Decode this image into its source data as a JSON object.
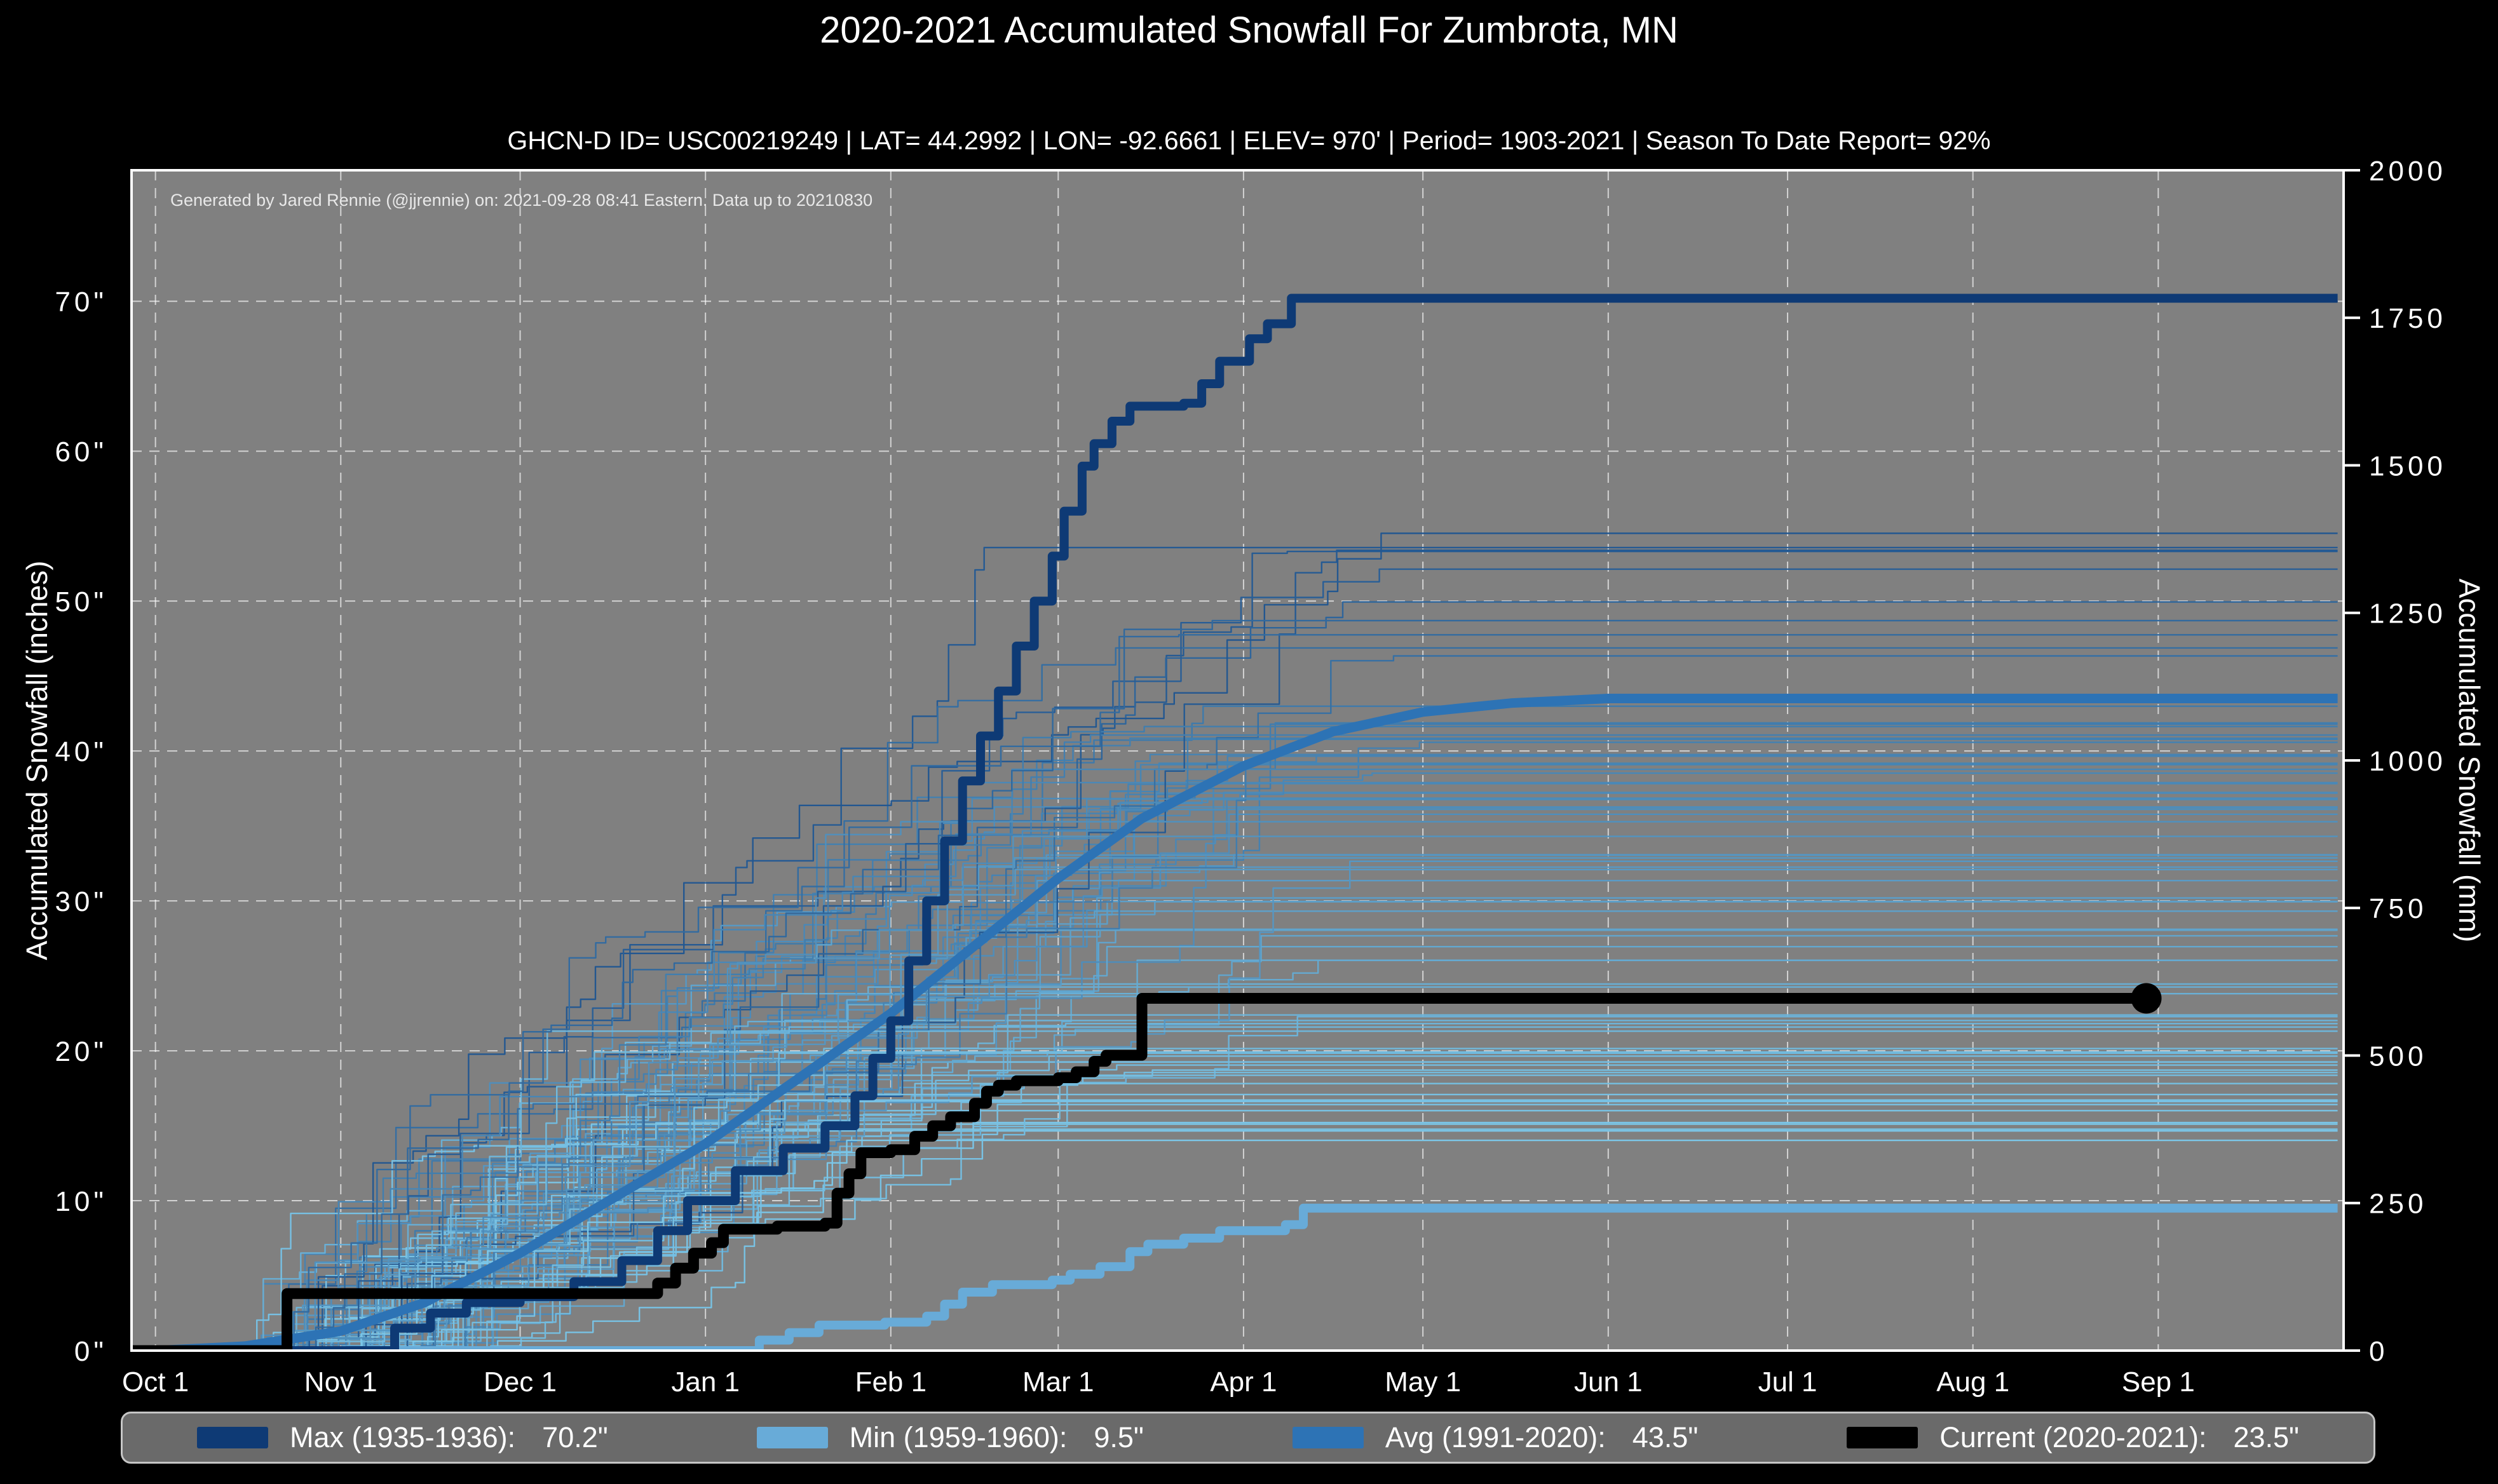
{
  "title": "2020-2021 Accumulated Snowfall For Zumbrota, MN",
  "subtitle": "GHCN-D ID= USC00219249 | LAT= 44.2992 | LON= -92.6661 | ELEV= 970' | Period= 1903-2021 | Season To Date Report= 92%",
  "attribution": "Generated by Jared Rennie (@jjrennie) on: 2021-09-28 08:41 Eastern. Data up to 20210830",
  "colors": {
    "page_background": "#000000",
    "plot_background": "#808080",
    "gridline": "rgba(255,255,255,0.65)",
    "spine": "#ffffff",
    "text": "#ffffff",
    "max_line": "#0e3a75",
    "min_line": "#68abd8",
    "avg_line": "#2d73b5",
    "current_line": "#000000"
  },
  "axes": {
    "x": {
      "tick_labels": [
        "Oct 1",
        "Nov 1",
        "Dec 1",
        "Jan 1",
        "Feb 1",
        "Mar 1",
        "Apr 1",
        "May 1",
        "Jun 1",
        "Jul 1",
        "Aug 1",
        "Sep 1"
      ],
      "tick_days": [
        0,
        31,
        61,
        92,
        123,
        151,
        182,
        212,
        243,
        273,
        304,
        335
      ]
    },
    "y_left": {
      "label": "Accumulated Snowfall (inches)",
      "tick_values": [
        0,
        10,
        20,
        30,
        40,
        50,
        60,
        70
      ],
      "tick_labels": [
        "0\"",
        "10\"",
        "20\"",
        "30\"",
        "40\"",
        "50\"",
        "60\"",
        "70\""
      ]
    },
    "y_right": {
      "label": "Accumulated Snowfall (mm)",
      "tick_values_mm": [
        0,
        250,
        500,
        750,
        1000,
        1250,
        1500,
        1750,
        2000
      ],
      "tick_labels": [
        "0",
        "250",
        "500",
        "750",
        "1000",
        "1250",
        "1500",
        "1750",
        "2000"
      ]
    }
  },
  "legend": {
    "items": [
      {
        "id": "max",
        "label": "Max (1935-1936):",
        "value": "70.2\"",
        "color": "#0e3a75"
      },
      {
        "id": "min",
        "label": "Min (1959-1960):",
        "value": "9.5\"",
        "color": "#68abd8"
      },
      {
        "id": "avg",
        "label": "Avg (1991-2020):",
        "value": "43.5\"",
        "color": "#2d73b5"
      },
      {
        "id": "current",
        "label": "Current (2020-2021):",
        "value": "23.5\"",
        "color": "#000000"
      }
    ]
  },
  "chart_data": {
    "type": "line",
    "title": "2020-2021 Accumulated Snowfall For Zumbrota, MN",
    "x_unit": "days since Oct 1",
    "x_range_days": [
      -4,
      366
    ],
    "ylim_inches": [
      0,
      78.74
    ],
    "ylim_mm": [
      0,
      2000
    ],
    "mm_per_inch": 25.4,
    "grid": true,
    "legend_position": "bottom",
    "series": [
      {
        "name": "Max (1935-1936)",
        "total_inches": 70.2,
        "color": "#0e3a75",
        "width": 14,
        "style": "step",
        "points": [
          [
            -4,
            0
          ],
          [
            38,
            0
          ],
          [
            40,
            1.5
          ],
          [
            46,
            2.5
          ],
          [
            52,
            3.2
          ],
          [
            61,
            3.6
          ],
          [
            70,
            4.6
          ],
          [
            78,
            6
          ],
          [
            84,
            8
          ],
          [
            89,
            10
          ],
          [
            97,
            12
          ],
          [
            105,
            13.5
          ],
          [
            112,
            15
          ],
          [
            117,
            17
          ],
          [
            120,
            19.5
          ],
          [
            123,
            22
          ],
          [
            126,
            26
          ],
          [
            129,
            30
          ],
          [
            132,
            34
          ],
          [
            135,
            38
          ],
          [
            138,
            41
          ],
          [
            141,
            44
          ],
          [
            144,
            47
          ],
          [
            147,
            50
          ],
          [
            150,
            53
          ],
          [
            152,
            56
          ],
          [
            155,
            59
          ],
          [
            157,
            60.5
          ],
          [
            160,
            62
          ],
          [
            163,
            63
          ],
          [
            172,
            63.2
          ],
          [
            175,
            64.5
          ],
          [
            178,
            66
          ],
          [
            183,
            67.5
          ],
          [
            186,
            68.5
          ],
          [
            190,
            70.2
          ],
          [
            365,
            70.2
          ]
        ]
      },
      {
        "name": "Min (1959-1960)",
        "total_inches": 9.5,
        "color": "#68abd8",
        "width": 14,
        "style": "step",
        "points": [
          [
            -4,
            0
          ],
          [
            100,
            0
          ],
          [
            101,
            0.7
          ],
          [
            106,
            1.2
          ],
          [
            111,
            1.7
          ],
          [
            122,
            1.9
          ],
          [
            129,
            2.3
          ],
          [
            132,
            3.1
          ],
          [
            135,
            3.9
          ],
          [
            140,
            4.4
          ],
          [
            150,
            4.7
          ],
          [
            153,
            5.1
          ],
          [
            158,
            5.6
          ],
          [
            163,
            6.6
          ],
          [
            166,
            7.1
          ],
          [
            172,
            7.5
          ],
          [
            178,
            8.0
          ],
          [
            189,
            8.4
          ],
          [
            192,
            9.5
          ],
          [
            365,
            9.5
          ]
        ]
      },
      {
        "name": "Avg (1991-2020)",
        "total_inches": 43.5,
        "color": "#2d73b5",
        "width": 15,
        "style": "smooth",
        "points": [
          [
            -4,
            0
          ],
          [
            0,
            0
          ],
          [
            15,
            0.3
          ],
          [
            31,
            1.3
          ],
          [
            45,
            3.2
          ],
          [
            61,
            6.5
          ],
          [
            75,
            9.8
          ],
          [
            92,
            13.8
          ],
          [
            107,
            18
          ],
          [
            123,
            22.5
          ],
          [
            137,
            27
          ],
          [
            151,
            31.5
          ],
          [
            165,
            35.5
          ],
          [
            182,
            39
          ],
          [
            197,
            41.3
          ],
          [
            212,
            42.6
          ],
          [
            227,
            43.2
          ],
          [
            243,
            43.5
          ],
          [
            365,
            43.5
          ]
        ]
      },
      {
        "name": "Current (2020-2021)",
        "total_inches": 23.5,
        "color": "#000000",
        "width": 17,
        "style": "step",
        "end_marker": true,
        "points": [
          [
            -4,
            0
          ],
          [
            21,
            0
          ],
          [
            22,
            3.8
          ],
          [
            83,
            3.8
          ],
          [
            84,
            4.5
          ],
          [
            87,
            5.5
          ],
          [
            90,
            6.5
          ],
          [
            93,
            7.2
          ],
          [
            95,
            8.1
          ],
          [
            104,
            8.3
          ],
          [
            112,
            8.5
          ],
          [
            114,
            10.5
          ],
          [
            116,
            11.8
          ],
          [
            118,
            13.2
          ],
          [
            123,
            13.4
          ],
          [
            127,
            14.3
          ],
          [
            130,
            15
          ],
          [
            133,
            15.6
          ],
          [
            137,
            16.5
          ],
          [
            139,
            17.3
          ],
          [
            141,
            17.7
          ],
          [
            144,
            18
          ],
          [
            151,
            18.2
          ],
          [
            154,
            18.6
          ],
          [
            157,
            19.3
          ],
          [
            159,
            19.7
          ],
          [
            164,
            19.7
          ],
          [
            165,
            23.5
          ],
          [
            333,
            23.5
          ]
        ]
      }
    ],
    "background_seasons": {
      "note": "Thin step lines: one per snowfall season 1903-2021, unlabeled in figure; color shades from light blue (low season total) to dark navy (high season total). Recreated procedurally with a seeded PRNG.",
      "count": 88,
      "seed": 13,
      "total_range_inches": [
        14,
        63
      ],
      "start_day_range": [
        15,
        58
      ],
      "end_day_range": [
        150,
        212
      ],
      "color_low": "#7cc7e8",
      "color_high": "#0e3d7c",
      "width": 2.4
    }
  }
}
